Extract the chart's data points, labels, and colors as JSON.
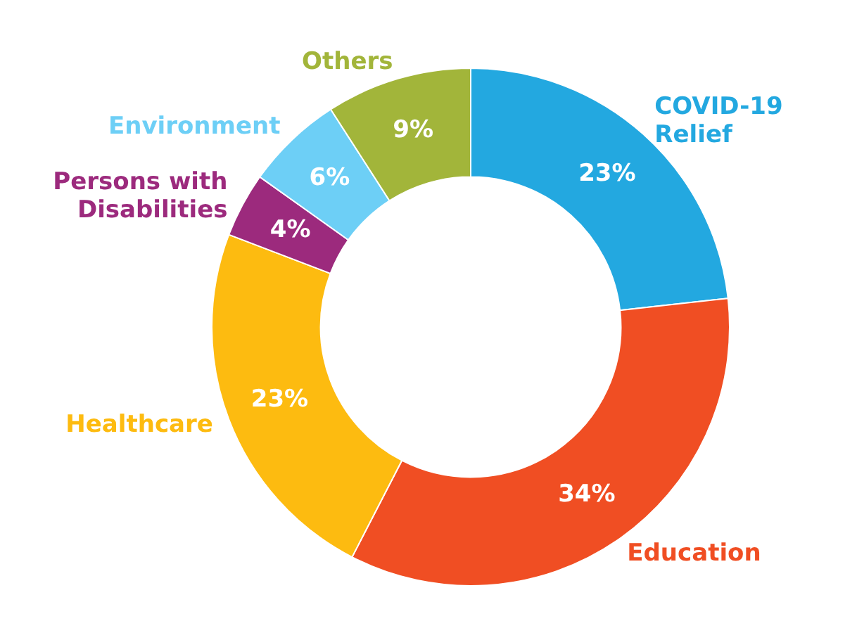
{
  "chart_data": {
    "type": "donut",
    "categories": [
      "COVID-19 Relief",
      "Education",
      "Healthcare",
      "Persons with Disabilities",
      "Environment",
      "Others"
    ],
    "values": [
      23,
      34,
      23,
      4,
      6,
      9
    ],
    "colors": [
      "#23a8e0",
      "#f04e23",
      "#fdbb10",
      "#9c2a7d",
      "#6dcff6",
      "#a2b53a"
    ],
    "value_labels": [
      "23%",
      "34%",
      "23%",
      "4%",
      "6%",
      "9%"
    ],
    "legend": false
  }
}
